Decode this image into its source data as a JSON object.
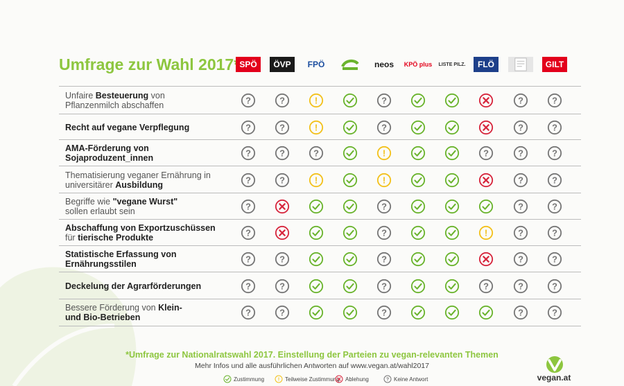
{
  "title": "Umfrage zur Wahl 2017*",
  "colors": {
    "yes": "#6ab42d",
    "partial": "#f3c11b",
    "no": "#d7263d",
    "none": "#777777",
    "accent": "#8dc63f"
  },
  "parties": [
    {
      "name": "SPÖ",
      "label": "SPÖ",
      "bg": "#e3001b",
      "fg": "#ffffff"
    },
    {
      "name": "ÖVP",
      "label": "ÖVP",
      "bg": "#1a1a1a",
      "fg": "#ffffff"
    },
    {
      "name": "FPÖ",
      "label": "FPÖ",
      "bg": "transparent",
      "fg": "#1d4fa0"
    },
    {
      "name": "Grüne",
      "label": "",
      "bg": "transparent",
      "fg": "#6ab42d"
    },
    {
      "name": "NEOS",
      "label": "neos",
      "bg": "transparent",
      "fg": "#1a1a1a"
    },
    {
      "name": "KPÖ plus",
      "label": "KPÖ plus",
      "bg": "transparent",
      "fg": "#e3001b"
    },
    {
      "name": "Liste Pilz",
      "label": "LISTE PILZ.",
      "bg": "transparent",
      "fg": "#333333"
    },
    {
      "name": "FLÖ",
      "label": "FLÖ",
      "bg": "#1d3f8a",
      "fg": "#ffffff"
    },
    {
      "name": "Weiße",
      "label": "",
      "bg": "#e6e6e6",
      "fg": "#888888"
    },
    {
      "name": "GILT",
      "label": "GILT",
      "bg": "#e3001b",
      "fg": "#ffffff"
    }
  ],
  "topics": [
    {
      "lines": [
        [
          {
            "t": "Unfaire ",
            "b": false
          },
          {
            "t": "Besteuerung",
            "b": true
          },
          {
            "t": " von",
            "b": false
          }
        ],
        [
          {
            "t": "Pflanzenmilch abschaffen",
            "b": false
          }
        ]
      ],
      "answers": [
        "none",
        "none",
        "partial",
        "yes",
        "none",
        "yes",
        "yes",
        "no",
        "none",
        "none"
      ]
    },
    {
      "lines": [
        [
          {
            "t": "Recht auf vegane Verpflegung",
            "b": true
          }
        ]
      ],
      "answers": [
        "none",
        "none",
        "partial",
        "yes",
        "none",
        "yes",
        "yes",
        "no",
        "none",
        "none"
      ]
    },
    {
      "lines": [
        [
          {
            "t": "AMA-Förderung von",
            "b": true
          }
        ],
        [
          {
            "t": "Sojaproduzent_innen",
            "b": true
          }
        ]
      ],
      "answers": [
        "none",
        "none",
        "none",
        "yes",
        "partial",
        "yes",
        "yes",
        "none",
        "none",
        "none"
      ]
    },
    {
      "lines": [
        [
          {
            "t": "Thematisierung veganer Ernährung in",
            "b": false
          }
        ],
        [
          {
            "t": "universitärer ",
            "b": false
          },
          {
            "t": "Ausbildung",
            "b": true
          }
        ]
      ],
      "answers": [
        "none",
        "none",
        "partial",
        "yes",
        "partial",
        "yes",
        "yes",
        "no",
        "none",
        "none"
      ]
    },
    {
      "lines": [
        [
          {
            "t": "Begriffe wie ",
            "b": false
          },
          {
            "t": "\"vegane Wurst\"",
            "b": true
          }
        ],
        [
          {
            "t": "sollen erlaubt sein",
            "b": false
          }
        ]
      ],
      "answers": [
        "none",
        "no",
        "yes",
        "yes",
        "none",
        "yes",
        "yes",
        "yes",
        "none",
        "none"
      ]
    },
    {
      "lines": [
        [
          {
            "t": "Abschaffung von Exportzuschüssen",
            "b": true
          }
        ],
        [
          {
            "t": "für ",
            "b": false
          },
          {
            "t": "tierische Produkte",
            "b": true
          }
        ]
      ],
      "answers": [
        "none",
        "no",
        "yes",
        "yes",
        "none",
        "yes",
        "yes",
        "partial",
        "none",
        "none"
      ]
    },
    {
      "lines": [
        [
          {
            "t": "Statistische Erfassung von",
            "b": true
          }
        ],
        [
          {
            "t": "Ernährungsstilen",
            "b": true
          }
        ]
      ],
      "answers": [
        "none",
        "none",
        "yes",
        "yes",
        "none",
        "yes",
        "yes",
        "no",
        "none",
        "none"
      ]
    },
    {
      "lines": [
        [
          {
            "t": "Deckelung der Agrarförderungen",
            "b": true
          }
        ]
      ],
      "answers": [
        "none",
        "none",
        "yes",
        "yes",
        "none",
        "yes",
        "yes",
        "none",
        "none",
        "none"
      ]
    },
    {
      "lines": [
        [
          {
            "t": "Bessere Förderung von ",
            "b": false
          },
          {
            "t": "Klein-",
            "b": true
          }
        ],
        [
          {
            "t": "und Bio-Betrieben",
            "b": true
          }
        ]
      ],
      "answers": [
        "none",
        "none",
        "yes",
        "yes",
        "none",
        "yes",
        "yes",
        "yes",
        "none",
        "none"
      ]
    }
  ],
  "footnote": "*Umfrage zur Nationalratswahl 2017. Einstellung der Parteien zu vegan-relevanten Themen",
  "more_info": "Mehr Infos und alle ausführlichen Antworten auf www.vegan.at/wahl2017",
  "legend": [
    {
      "kind": "yes",
      "label": "Zustimmung"
    },
    {
      "kind": "partial",
      "label": "Teilweise Zustimmung"
    },
    {
      "kind": "no",
      "label": "Ablehung"
    },
    {
      "kind": "none",
      "label": "Keine Antwort"
    }
  ],
  "brand": "vegan.at"
}
